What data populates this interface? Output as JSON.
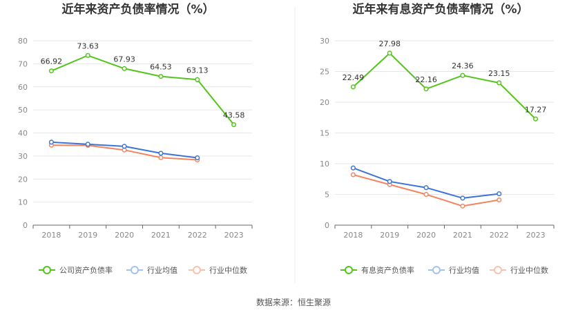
{
  "chart_data": [
    {
      "type": "line",
      "title": "近年来资产负债率情况（%）",
      "categories": [
        "2018",
        "2019",
        "2020",
        "2021",
        "2022",
        "2023"
      ],
      "ylim": [
        0,
        80
      ],
      "yticks": [
        0,
        10,
        20,
        30,
        40,
        50,
        60,
        70,
        80
      ],
      "series": [
        {
          "name": "公司资产负债率",
          "color": "#52c41a",
          "values": [
            66.92,
            73.63,
            67.93,
            64.53,
            63.13,
            43.58
          ],
          "labels": [
            "66.92",
            "73.63",
            "67.93",
            "64.53",
            "63.13",
            "43.58"
          ]
        },
        {
          "name": "行业均值",
          "color": "#3b73d6",
          "values": [
            36.0,
            35.1,
            34.2,
            31.2,
            29.2,
            null
          ]
        },
        {
          "name": "行业中位数",
          "color": "#f4845f",
          "values": [
            34.7,
            34.6,
            32.6,
            29.3,
            28.3,
            null
          ]
        }
      ]
    },
    {
      "type": "line",
      "title": "近年来有息资产负债率情况（%）",
      "categories": [
        "2018",
        "2019",
        "2020",
        "2021",
        "2022",
        "2023"
      ],
      "ylim": [
        0,
        30
      ],
      "yticks": [
        0,
        5,
        10,
        15,
        20,
        25,
        30
      ],
      "series": [
        {
          "name": "有息资产负债率",
          "color": "#52c41a",
          "values": [
            22.49,
            27.98,
            22.16,
            24.36,
            23.15,
            17.27
          ],
          "labels": [
            "22.49",
            "27.98",
            "22.16",
            "24.36",
            "23.15",
            "17.27"
          ]
        },
        {
          "name": "行业均值",
          "color": "#3b73d6",
          "values": [
            9.3,
            7.1,
            6.1,
            4.4,
            5.1,
            null
          ]
        },
        {
          "name": "行业中位数",
          "color": "#f4845f",
          "values": [
            8.2,
            6.6,
            5.0,
            3.1,
            4.1,
            null
          ]
        }
      ]
    }
  ],
  "footer": {
    "source": "数据来源：恒生聚源"
  }
}
